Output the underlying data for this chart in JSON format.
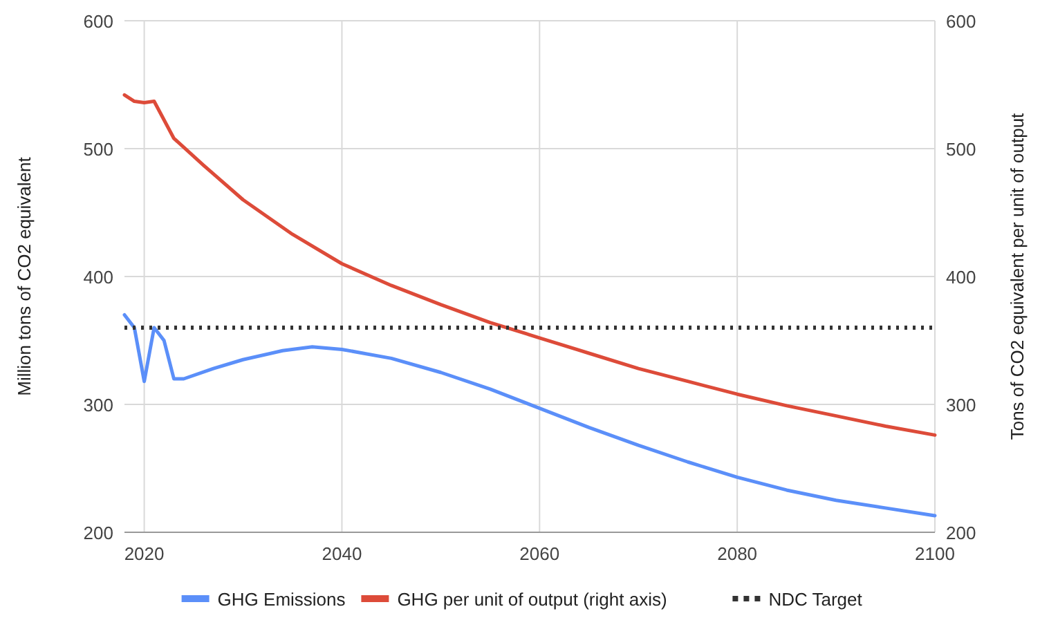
{
  "chart_data": {
    "type": "line",
    "ylabel": "Million tons of CO2 equivalent",
    "y2label": "Tons of CO2 equivalent per unit of output",
    "xlim": [
      2018,
      2100
    ],
    "xticks": [
      2020,
      2040,
      2060,
      2080,
      2100
    ],
    "ylim": [
      200,
      600
    ],
    "yticks": [
      200,
      300,
      400,
      500,
      600
    ],
    "y2lim": [
      200,
      600
    ],
    "y2ticks": [
      200,
      300,
      400,
      500,
      600
    ],
    "grid": true,
    "legend": "bottom",
    "series": [
      {
        "name": "GHG Emissions",
        "color": "#5b8ff9",
        "x": [
          2018,
          2019,
          2020,
          2021,
          2022,
          2023,
          2024,
          2027,
          2030,
          2034,
          2037,
          2040,
          2045,
          2050,
          2055,
          2060,
          2065,
          2070,
          2075,
          2080,
          2085,
          2090,
          2095,
          2100
        ],
        "values": [
          370,
          360,
          318,
          360,
          350,
          320,
          320,
          328,
          335,
          342,
          345,
          343,
          336,
          325,
          312,
          297,
          282,
          268,
          255,
          243,
          233,
          225,
          219,
          213
        ]
      },
      {
        "name": "GHG per unit of output (right axis)",
        "color": "#dd4b39",
        "axis": "y2",
        "x": [
          2018,
          2019,
          2020,
          2021,
          2023,
          2026,
          2030,
          2035,
          2040,
          2045,
          2050,
          2055,
          2060,
          2065,
          2070,
          2075,
          2080,
          2085,
          2090,
          2095,
          2100
        ],
        "values": [
          542,
          537,
          536,
          537,
          508,
          487,
          460,
          433,
          410,
          393,
          378,
          364,
          352,
          340,
          328,
          318,
          308,
          299,
          291,
          283,
          276
        ]
      },
      {
        "name": "NDC Target",
        "color": "#333333",
        "line_style": "dotted",
        "x": [
          2018,
          2100
        ],
        "values": [
          360,
          360
        ]
      }
    ]
  }
}
